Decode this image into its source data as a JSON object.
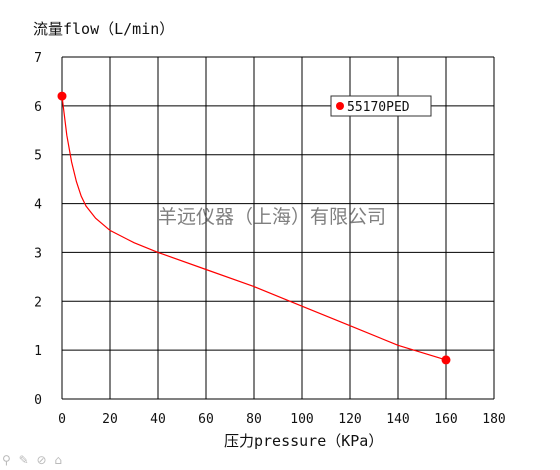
{
  "chart_data": {
    "type": "line",
    "ylabel": "流量flow（L/min）",
    "xlabel": "压力pressure（KPa）",
    "xlim": [
      0,
      180
    ],
    "ylim": [
      0,
      7
    ],
    "x_ticks": [
      "0",
      "20",
      "40",
      "60",
      "80",
      "100",
      "120",
      "140",
      "160",
      "180"
    ],
    "y_ticks": [
      "0",
      "1",
      "2",
      "3",
      "4",
      "5",
      "6",
      "7"
    ],
    "grid": true,
    "legend_placement": "top-right",
    "series": [
      {
        "name": "55170PED",
        "color": "#ff0000",
        "x": [
          0,
          2,
          4,
          6,
          8,
          10,
          14,
          20,
          30,
          40,
          60,
          80,
          100,
          120,
          140,
          160
        ],
        "y": [
          6.2,
          5.4,
          4.85,
          4.45,
          4.15,
          3.95,
          3.7,
          3.45,
          3.2,
          3.0,
          2.65,
          2.3,
          1.9,
          1.5,
          1.1,
          0.8
        ],
        "endpoint_markers": [
          [
            0,
            6.2
          ],
          [
            160,
            0.8
          ]
        ]
      }
    ]
  },
  "watermark": "羊远仪器（上海）有限公司",
  "corner_icons": "⚲ ✎ ⊘ ⌂"
}
